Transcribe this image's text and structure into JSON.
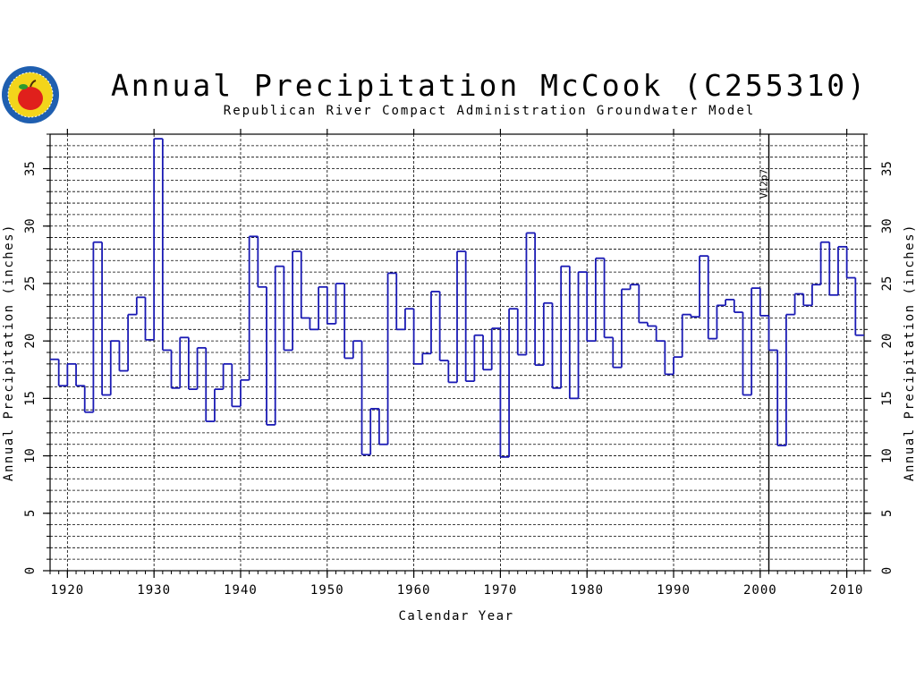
{
  "colors": {
    "series": "#1a1ab4",
    "axis": "#000000",
    "grid": "#000000",
    "logo_ring": "#1f5fb0",
    "logo_fill": "#f3d51b",
    "logo_apple": "#e0201c"
  },
  "logo": {
    "name": "rrca-apple-seal-logo"
  },
  "chart_data": {
    "type": "line",
    "step": true,
    "title": "Annual Precipitation McCook (C255310)",
    "subtitle": "Republican River Compact Administration Groundwater Model",
    "xlabel": "Calendar Year",
    "ylabel": "Annual Precipitation (inches)",
    "ylabel_right": "Annual Precipitation (inches)",
    "xlim": [
      1918,
      2012
    ],
    "ylim": [
      0,
      38
    ],
    "x_ticks": [
      1920,
      1930,
      1940,
      1950,
      1960,
      1970,
      1980,
      1990,
      2000,
      2010
    ],
    "y_ticks": [
      0,
      5,
      10,
      15,
      20,
      25,
      30,
      35
    ],
    "minor_grid_step": 1,
    "grid": true,
    "annotation": {
      "label": "V12p7",
      "x": 2001
    },
    "series": [
      {
        "x": [
          1918,
          1919,
          1920,
          1921,
          1922,
          1923,
          1924,
          1925,
          1926,
          1927,
          1928,
          1929,
          1930,
          1931,
          1932,
          1933,
          1934,
          1935,
          1936,
          1937,
          1938,
          1939,
          1940,
          1941,
          1942,
          1943,
          1944,
          1945,
          1946,
          1947,
          1948,
          1949,
          1950,
          1951,
          1952,
          1953,
          1954,
          1955,
          1956,
          1957,
          1958,
          1959,
          1960,
          1961,
          1962,
          1963,
          1964,
          1965,
          1966,
          1967,
          1968,
          1969,
          1970,
          1971,
          1972,
          1973,
          1974,
          1975,
          1976,
          1977,
          1978,
          1979,
          1980,
          1981,
          1982,
          1983,
          1984,
          1985,
          1986,
          1987,
          1988,
          1989,
          1990,
          1991,
          1992,
          1993,
          1994,
          1995,
          1996,
          1997,
          1998,
          1999,
          2000,
          2001,
          2002,
          2003,
          2004,
          2005,
          2006,
          2007,
          2008,
          2009,
          2010,
          2011
        ],
        "values": [
          18.4,
          16.1,
          18.0,
          16.1,
          13.8,
          28.6,
          15.3,
          20.0,
          17.4,
          22.3,
          23.8,
          20.1,
          37.6,
          19.2,
          15.9,
          20.3,
          15.8,
          19.4,
          13.0,
          15.8,
          18.0,
          14.3,
          16.6,
          29.1,
          24.7,
          12.7,
          26.5,
          19.2,
          27.8,
          22.0,
          21.0,
          24.7,
          21.5,
          25.0,
          18.5,
          20.0,
          10.1,
          14.1,
          11.0,
          25.9,
          21.0,
          22.8,
          18.0,
          18.9,
          24.3,
          18.3,
          16.4,
          27.8,
          16.5,
          20.5,
          17.5,
          21.1,
          9.9,
          22.8,
          18.8,
          29.4,
          17.9,
          23.3,
          15.9,
          26.5,
          15.0,
          26.0,
          20.0,
          27.2,
          20.3,
          17.7,
          24.5,
          24.9,
          21.6,
          21.3,
          20.0,
          17.1,
          18.6,
          22.3,
          22.1,
          27.4,
          20.2,
          23.1,
          23.6,
          22.5,
          15.3,
          24.6,
          22.2,
          19.2,
          10.9,
          22.3,
          24.1,
          23.1,
          24.9,
          28.6,
          24.0,
          28.2,
          25.5,
          20.5
        ]
      }
    ]
  }
}
